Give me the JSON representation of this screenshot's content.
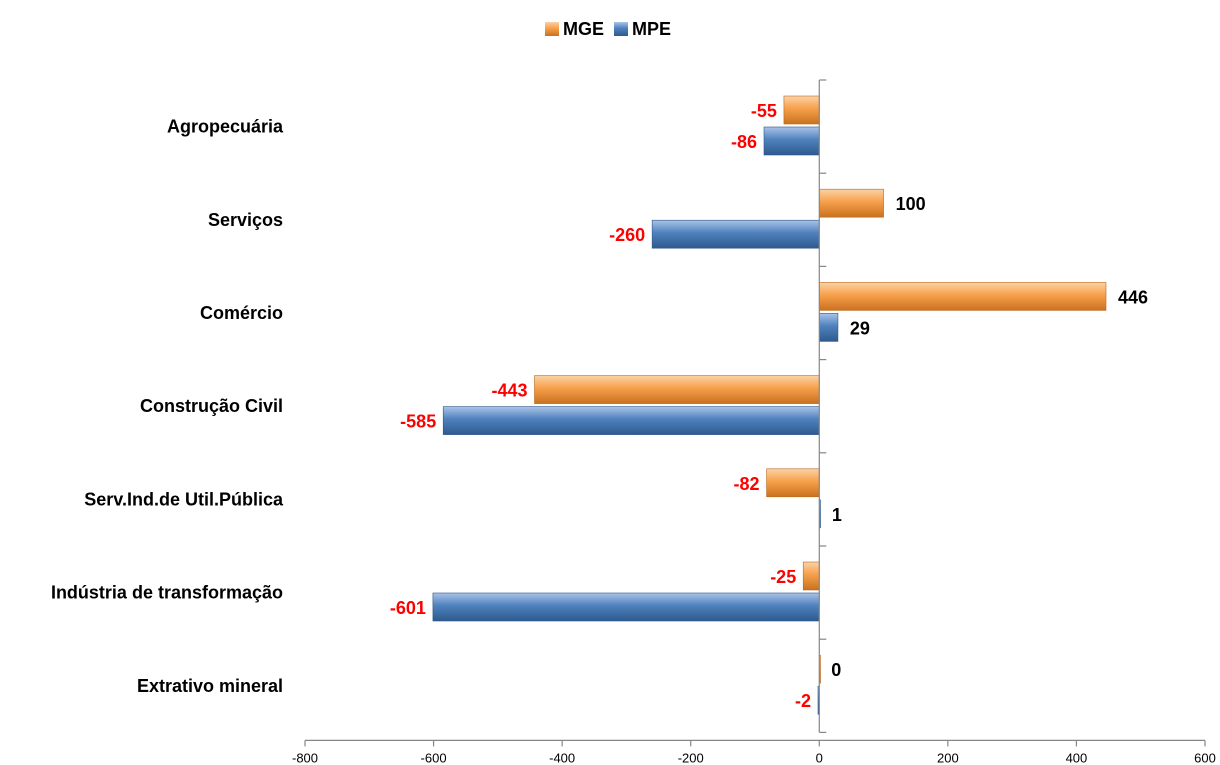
{
  "chart_data": {
    "type": "bar",
    "orientation": "horizontal",
    "categories": [
      "Agropecuária",
      "Serviços",
      "Comércio",
      "Construção Civil",
      "Serv.Ind.de Util.Pública",
      "Indústria de transformação",
      "Extrativo mineral"
    ],
    "series": [
      {
        "name": "MGE",
        "values": [
          -55,
          100,
          446,
          -443,
          -82,
          -25,
          0
        ],
        "color": "#f7a04a"
      },
      {
        "name": "MPE",
        "values": [
          -86,
          -260,
          29,
          -585,
          1,
          -601,
          -2
        ],
        "color": "#4f81bd"
      }
    ],
    "xlim": [
      -800,
      600
    ],
    "xticks": [
      "-800",
      "-600",
      "-400",
      "-200",
      "0",
      "200",
      "400",
      "600"
    ],
    "title": "",
    "xlabel": "",
    "ylabel": "",
    "legend_position": "top",
    "grid": false,
    "negative_label_color": "#ff0000",
    "positive_label_color": "#000000"
  }
}
